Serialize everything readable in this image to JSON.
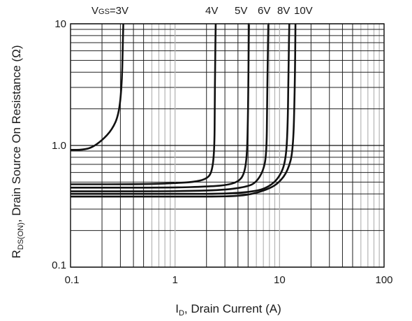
{
  "chart_data": {
    "type": "line",
    "x_scale": "log",
    "y_scale": "log",
    "xlim": [
      0.1,
      100
    ],
    "ylim": [
      0.1,
      10
    ],
    "grid": true,
    "x_tick_labels": [
      "0.1",
      "1",
      "10",
      "100"
    ],
    "y_tick_labels": [
      "0.1",
      "1.0",
      "10"
    ],
    "xlabel": {
      "main": "I",
      "sub": "D",
      "rest": ", Drain Current (A)"
    },
    "ylabel": {
      "main": "R",
      "sub": "DS(ON)",
      "rest": ", Drain Source On Resistance (Ω)"
    },
    "series": [
      {
        "name": "VGS=3V",
        "label_parts": {
          "main": "V",
          "sub": "GS",
          "rest": "=3V"
        },
        "x": [
          0.1,
          0.13,
          0.16,
          0.2,
          0.25,
          0.29,
          0.31,
          0.315,
          0.32
        ],
        "y": [
          0.92,
          0.92,
          0.96,
          1.1,
          1.35,
          1.8,
          3.2,
          6.0,
          10
        ]
      },
      {
        "name": "4V",
        "label_parts": {
          "main": "4V",
          "sub": "",
          "rest": ""
        },
        "x": [
          0.1,
          0.5,
          1.0,
          1.5,
          2.0,
          2.25,
          2.38,
          2.4,
          2.42,
          2.45
        ],
        "y": [
          0.48,
          0.48,
          0.49,
          0.5,
          0.53,
          0.6,
          0.9,
          2.0,
          5.0,
          10
        ]
      },
      {
        "name": "5V",
        "label_parts": {
          "main": "5V",
          "sub": "",
          "rest": ""
        },
        "x": [
          0.1,
          1.0,
          2.0,
          3.0,
          4.0,
          4.6,
          4.9,
          5.0,
          5.05,
          5.1
        ],
        "y": [
          0.45,
          0.45,
          0.46,
          0.47,
          0.5,
          0.58,
          0.85,
          2.0,
          5.0,
          10
        ]
      },
      {
        "name": "6V",
        "label_parts": {
          "main": "6V",
          "sub": "",
          "rest": ""
        },
        "x": [
          0.1,
          1.0,
          3.0,
          5.0,
          6.0,
          7.0,
          7.5,
          7.6,
          7.7,
          7.8
        ],
        "y": [
          0.42,
          0.42,
          0.43,
          0.46,
          0.5,
          0.62,
          0.85,
          2.0,
          5.0,
          10
        ]
      },
      {
        "name": "8V",
        "label_parts": {
          "main": "8V",
          "sub": "",
          "rest": ""
        },
        "x": [
          0.1,
          1.0,
          3.0,
          6.0,
          8.0,
          10.0,
          11.5,
          12.0,
          12.2,
          12.4
        ],
        "y": [
          0.4,
          0.4,
          0.4,
          0.42,
          0.46,
          0.55,
          0.75,
          1.5,
          5.0,
          10
        ]
      },
      {
        "name": "10V",
        "label_parts": {
          "main": "10V",
          "sub": "",
          "rest": ""
        },
        "x": [
          0.1,
          1.0,
          3.0,
          5.0,
          8.0,
          10.0,
          12.0,
          13.5,
          14.0,
          14.2
        ],
        "y": [
          0.38,
          0.38,
          0.38,
          0.39,
          0.44,
          0.5,
          0.62,
          0.9,
          3.0,
          10
        ]
      }
    ]
  }
}
